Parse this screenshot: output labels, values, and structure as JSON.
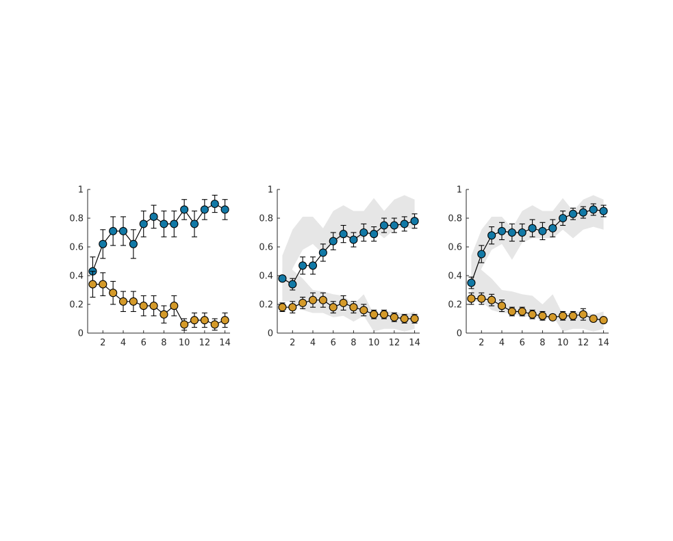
{
  "colors": {
    "series_a": "#1279a6",
    "series_b": "#d49a2a",
    "band": "#e6e6e6",
    "axis": "#262626"
  },
  "chart_data": [
    {
      "type": "line",
      "title": "",
      "xlabel": "",
      "ylabel": "",
      "xlim": [
        0.5,
        14.5
      ],
      "ylim": [
        0,
        1
      ],
      "xticks": [
        2,
        4,
        6,
        8,
        10,
        12,
        14
      ],
      "yticks": [
        0,
        0.2,
        0.4,
        0.6,
        0.8,
        1
      ],
      "xtick_labels": [
        "2",
        "4",
        "6",
        "8",
        "10",
        "12",
        "14"
      ],
      "ytick_labels": [
        "0",
        "0.2",
        "0.4",
        "0.6",
        "0.8",
        "1"
      ],
      "grid": false,
      "x": [
        1,
        2,
        3,
        4,
        5,
        6,
        7,
        8,
        9,
        10,
        11,
        12,
        13,
        14
      ],
      "series": [
        {
          "color": "#1279a6",
          "values": [
            0.43,
            0.62,
            0.71,
            0.71,
            0.62,
            0.76,
            0.81,
            0.76,
            0.76,
            0.86,
            0.76,
            0.86,
            0.9,
            0.86
          ],
          "error": [
            0.1,
            0.1,
            0.1,
            0.1,
            0.1,
            0.09,
            0.08,
            0.09,
            0.09,
            0.07,
            0.09,
            0.07,
            0.06,
            0.07
          ]
        },
        {
          "color": "#d49a2a",
          "values": [
            0.34,
            0.34,
            0.28,
            0.22,
            0.22,
            0.19,
            0.19,
            0.13,
            0.19,
            0.06,
            0.09,
            0.09,
            0.06,
            0.09
          ],
          "error": [
            0.09,
            0.08,
            0.08,
            0.07,
            0.07,
            0.07,
            0.07,
            0.06,
            0.07,
            0.04,
            0.05,
            0.05,
            0.04,
            0.05
          ]
        }
      ]
    },
    {
      "type": "line",
      "title": "",
      "xlabel": "",
      "ylabel": "",
      "xlim": [
        0.5,
        14.5
      ],
      "ylim": [
        0,
        1
      ],
      "xticks": [
        2,
        4,
        6,
        8,
        10,
        12,
        14
      ],
      "yticks": [
        0,
        0.2,
        0.4,
        0.6,
        0.8,
        1
      ],
      "xtick_labels": [
        "2",
        "4",
        "6",
        "8",
        "10",
        "12",
        "14"
      ],
      "ytick_labels": [
        "0",
        "0.2",
        "0.4",
        "0.6",
        "0.8",
        "1"
      ],
      "grid": false,
      "x": [
        1,
        2,
        3,
        4,
        5,
        6,
        7,
        8,
        9,
        10,
        11,
        12,
        13,
        14
      ],
      "bands": [
        {
          "color": "#e6e6e6",
          "lower": [
            0.26,
            0.45,
            0.58,
            0.62,
            0.55,
            0.63,
            0.66,
            0.66,
            0.66,
            0.72,
            0.66,
            0.72,
            0.74,
            0.72
          ],
          "upper": [
            0.54,
            0.72,
            0.81,
            0.81,
            0.73,
            0.85,
            0.89,
            0.85,
            0.85,
            0.94,
            0.85,
            0.93,
            0.96,
            0.93
          ]
        },
        {
          "color": "#e6e6e6",
          "lower": [
            0.22,
            0.22,
            0.16,
            0.14,
            0.14,
            0.11,
            0.12,
            0.08,
            0.12,
            0.01,
            0.03,
            0.03,
            0.01,
            0.03
          ],
          "upper": [
            0.45,
            0.44,
            0.38,
            0.3,
            0.29,
            0.27,
            0.26,
            0.2,
            0.27,
            0.13,
            0.15,
            0.15,
            0.13,
            0.15
          ]
        }
      ],
      "series": [
        {
          "color": "#1279a6",
          "values": [
            0.38,
            0.34,
            0.47,
            0.47,
            0.56,
            0.64,
            0.69,
            0.65,
            0.7,
            0.69,
            0.75,
            0.75,
            0.76,
            0.78
          ],
          "error": [
            0.02,
            0.04,
            0.06,
            0.06,
            0.06,
            0.06,
            0.06,
            0.05,
            0.06,
            0.05,
            0.05,
            0.05,
            0.05,
            0.05
          ]
        },
        {
          "color": "#d49a2a",
          "values": [
            0.18,
            0.18,
            0.21,
            0.23,
            0.23,
            0.18,
            0.21,
            0.18,
            0.16,
            0.13,
            0.13,
            0.11,
            0.1,
            0.1
          ],
          "error": [
            0.03,
            0.04,
            0.04,
            0.05,
            0.05,
            0.04,
            0.05,
            0.04,
            0.04,
            0.03,
            0.03,
            0.03,
            0.03,
            0.03
          ]
        }
      ]
    },
    {
      "type": "line",
      "title": "",
      "xlabel": "",
      "ylabel": "",
      "xlim": [
        0.5,
        14.5
      ],
      "ylim": [
        0,
        1
      ],
      "xticks": [
        2,
        4,
        6,
        8,
        10,
        12,
        14
      ],
      "yticks": [
        0,
        0.2,
        0.4,
        0.6,
        0.8,
        1
      ],
      "xtick_labels": [
        "2",
        "4",
        "6",
        "8",
        "10",
        "12",
        "14"
      ],
      "ytick_labels": [
        "0",
        "0.2",
        "0.4",
        "0.6",
        "0.8",
        "1"
      ],
      "grid": false,
      "x": [
        1,
        2,
        3,
        4,
        5,
        6,
        7,
        8,
        9,
        10,
        11,
        12,
        13,
        14
      ],
      "bands": [
        {
          "color": "#e6e6e6",
          "lower": [
            0.26,
            0.45,
            0.58,
            0.62,
            0.51,
            0.63,
            0.66,
            0.66,
            0.66,
            0.72,
            0.66,
            0.72,
            0.74,
            0.72
          ],
          "upper": [
            0.54,
            0.72,
            0.81,
            0.81,
            0.73,
            0.85,
            0.89,
            0.85,
            0.85,
            0.94,
            0.85,
            0.93,
            0.96,
            0.93
          ]
        },
        {
          "color": "#e6e6e6",
          "lower": [
            0.22,
            0.22,
            0.16,
            0.14,
            0.14,
            0.11,
            0.12,
            0.08,
            0.12,
            0.01,
            0.03,
            0.03,
            0.01,
            0.03
          ],
          "upper": [
            0.45,
            0.44,
            0.38,
            0.3,
            0.29,
            0.27,
            0.26,
            0.2,
            0.27,
            0.13,
            0.15,
            0.15,
            0.13,
            0.15
          ]
        }
      ],
      "series": [
        {
          "color": "#1279a6",
          "values": [
            0.35,
            0.55,
            0.68,
            0.71,
            0.7,
            0.7,
            0.73,
            0.71,
            0.73,
            0.8,
            0.83,
            0.84,
            0.86,
            0.85
          ],
          "error": [
            0.04,
            0.06,
            0.06,
            0.06,
            0.06,
            0.06,
            0.06,
            0.06,
            0.06,
            0.05,
            0.04,
            0.04,
            0.04,
            0.04
          ]
        },
        {
          "color": "#d49a2a",
          "values": [
            0.24,
            0.24,
            0.23,
            0.19,
            0.15,
            0.15,
            0.13,
            0.12,
            0.11,
            0.12,
            0.12,
            0.13,
            0.1,
            0.09
          ],
          "error": [
            0.04,
            0.04,
            0.04,
            0.04,
            0.03,
            0.03,
            0.03,
            0.03,
            0.02,
            0.03,
            0.03,
            0.04,
            0.02,
            0.02
          ]
        }
      ]
    }
  ]
}
